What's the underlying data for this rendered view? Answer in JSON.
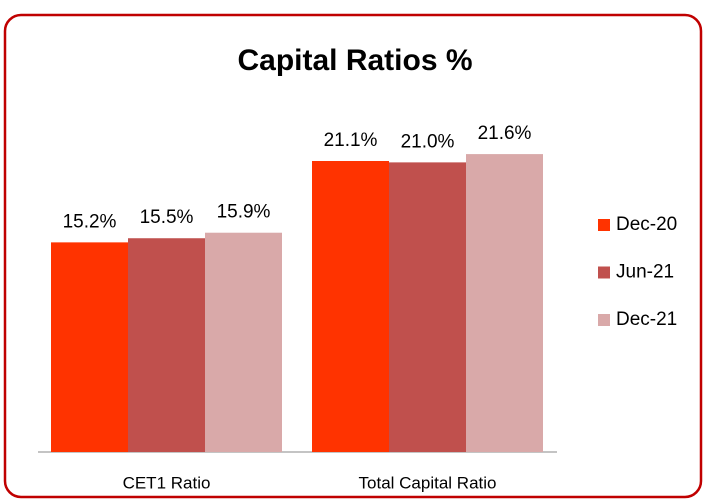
{
  "chart_data": {
    "type": "bar",
    "title": "Capital Ratios %",
    "categories": [
      "CET1 Ratio",
      "Total Capital Ratio"
    ],
    "series": [
      {
        "name": "Dec-20",
        "color": "#ff3300",
        "values": [
          15.2,
          21.1
        ],
        "value_labels": [
          "15.2%",
          "21.1%"
        ]
      },
      {
        "name": "Jun-21",
        "color": "#c0504d",
        "values": [
          15.5,
          21.0
        ],
        "value_labels": [
          "15.5%",
          "21.0%"
        ]
      },
      {
        "name": "Dec-21",
        "color": "#d9a9a9",
        "values": [
          15.9,
          21.6
        ],
        "value_labels": [
          "15.9%",
          "21.6%"
        ]
      }
    ],
    "ylim": [
      0,
      24
    ],
    "legend": "right"
  }
}
